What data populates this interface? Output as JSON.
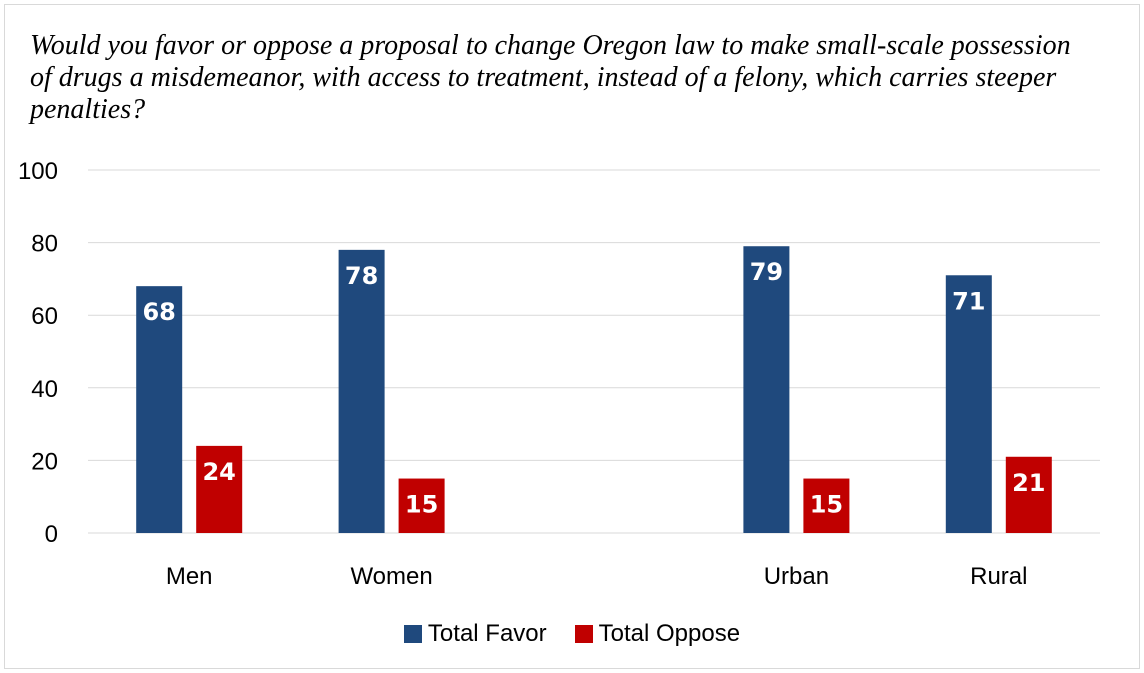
{
  "chart_data": {
    "type": "bar",
    "title": "Would you favor or oppose a proposal to change Oregon law to make small-scale possession of drugs a misdemeanor, with access to treatment, instead of a felony, which carries steeper penalties?",
    "categories": [
      "Men",
      "Women",
      "",
      "Urban",
      "Rural"
    ],
    "series": [
      {
        "name": "Total Favor",
        "color": "#1f497d",
        "values": [
          68,
          78,
          null,
          79,
          71
        ]
      },
      {
        "name": "Total Oppose",
        "color": "#c00000",
        "values": [
          24,
          15,
          null,
          15,
          21
        ]
      }
    ],
    "ylim": [
      0,
      100
    ],
    "yticks": [
      0,
      20,
      40,
      60,
      80,
      100
    ],
    "grid": true,
    "legend_position": "bottom",
    "data_labels": true
  }
}
